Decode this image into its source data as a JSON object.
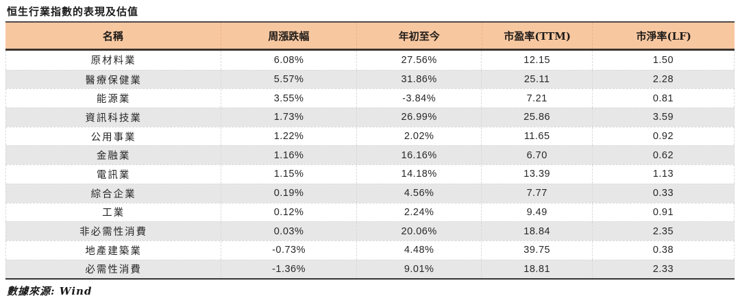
{
  "title": "恒生行業指數的表現及估值",
  "table": {
    "columns": [
      "名稱",
      "周漲跌幅",
      "年初至今",
      "市盈率(TTM)",
      "市淨率(LF)"
    ],
    "rows": [
      {
        "name": "原材料業",
        "weekly": "6.08%",
        "ytd": "27.56%",
        "pe": "12.15",
        "pb": "1.50"
      },
      {
        "name": "醫療保健業",
        "weekly": "5.57%",
        "ytd": "31.86%",
        "pe": "25.11",
        "pb": "2.28"
      },
      {
        "name": "能源業",
        "weekly": "3.55%",
        "ytd": "-3.84%",
        "pe": "7.21",
        "pb": "0.81"
      },
      {
        "name": "資訊科技業",
        "weekly": "1.73%",
        "ytd": "26.99%",
        "pe": "25.86",
        "pb": "3.59"
      },
      {
        "name": "公用事業",
        "weekly": "1.22%",
        "ytd": "2.02%",
        "pe": "11.65",
        "pb": "0.92"
      },
      {
        "name": "金融業",
        "weekly": "1.16%",
        "ytd": "16.16%",
        "pe": "6.70",
        "pb": "0.62"
      },
      {
        "name": "電訊業",
        "weekly": "1.15%",
        "ytd": "14.18%",
        "pe": "13.39",
        "pb": "1.13"
      },
      {
        "name": "綜合企業",
        "weekly": "0.19%",
        "ytd": "4.56%",
        "pe": "7.77",
        "pb": "0.33"
      },
      {
        "name": "工業",
        "weekly": "0.12%",
        "ytd": "2.24%",
        "pe": "9.49",
        "pb": "0.91"
      },
      {
        "name": "非必需性消費",
        "weekly": "0.03%",
        "ytd": "20.06%",
        "pe": "18.84",
        "pb": "2.35"
      },
      {
        "name": "地產建築業",
        "weekly": "-0.73%",
        "ytd": "4.48%",
        "pe": "39.75",
        "pb": "0.38"
      },
      {
        "name": "必需性消費",
        "weekly": "-1.36%",
        "ytd": "9.01%",
        "pe": "18.81",
        "pb": "2.33"
      }
    ]
  },
  "footer": {
    "source": "數據來源: Wind"
  },
  "colors": {
    "header_background": "#f7c7a0",
    "alt_row_background": "#e7e7e7",
    "border_dark": "#333333",
    "separator_dashed": "#d9d9d9",
    "text": "#262626"
  },
  "chart_data": {
    "type": "table",
    "title": "恒生行業指數的表現及估值",
    "categories": [
      "原材料業",
      "醫療保健業",
      "能源業",
      "資訊科技業",
      "公用事業",
      "金融業",
      "電訊業",
      "綜合企業",
      "工業",
      "非必需性消費",
      "地產建築業",
      "必需性消費"
    ],
    "series": [
      {
        "name": "周漲跌幅(%)",
        "values": [
          6.08,
          5.57,
          3.55,
          1.73,
          1.22,
          1.16,
          1.15,
          0.19,
          0.12,
          0.03,
          -0.73,
          -1.36
        ]
      },
      {
        "name": "年初至今(%)",
        "values": [
          27.56,
          31.86,
          -3.84,
          26.99,
          2.02,
          16.16,
          14.18,
          4.56,
          2.24,
          20.06,
          4.48,
          9.01
        ]
      },
      {
        "name": "市盈率(TTM)",
        "values": [
          12.15,
          25.11,
          7.21,
          25.86,
          11.65,
          6.7,
          13.39,
          7.77,
          9.49,
          18.84,
          39.75,
          18.81
        ]
      },
      {
        "name": "市淨率(LF)",
        "values": [
          1.5,
          2.28,
          0.81,
          3.59,
          0.92,
          0.62,
          1.13,
          0.33,
          0.91,
          2.35,
          0.38,
          2.33
        ]
      }
    ]
  }
}
